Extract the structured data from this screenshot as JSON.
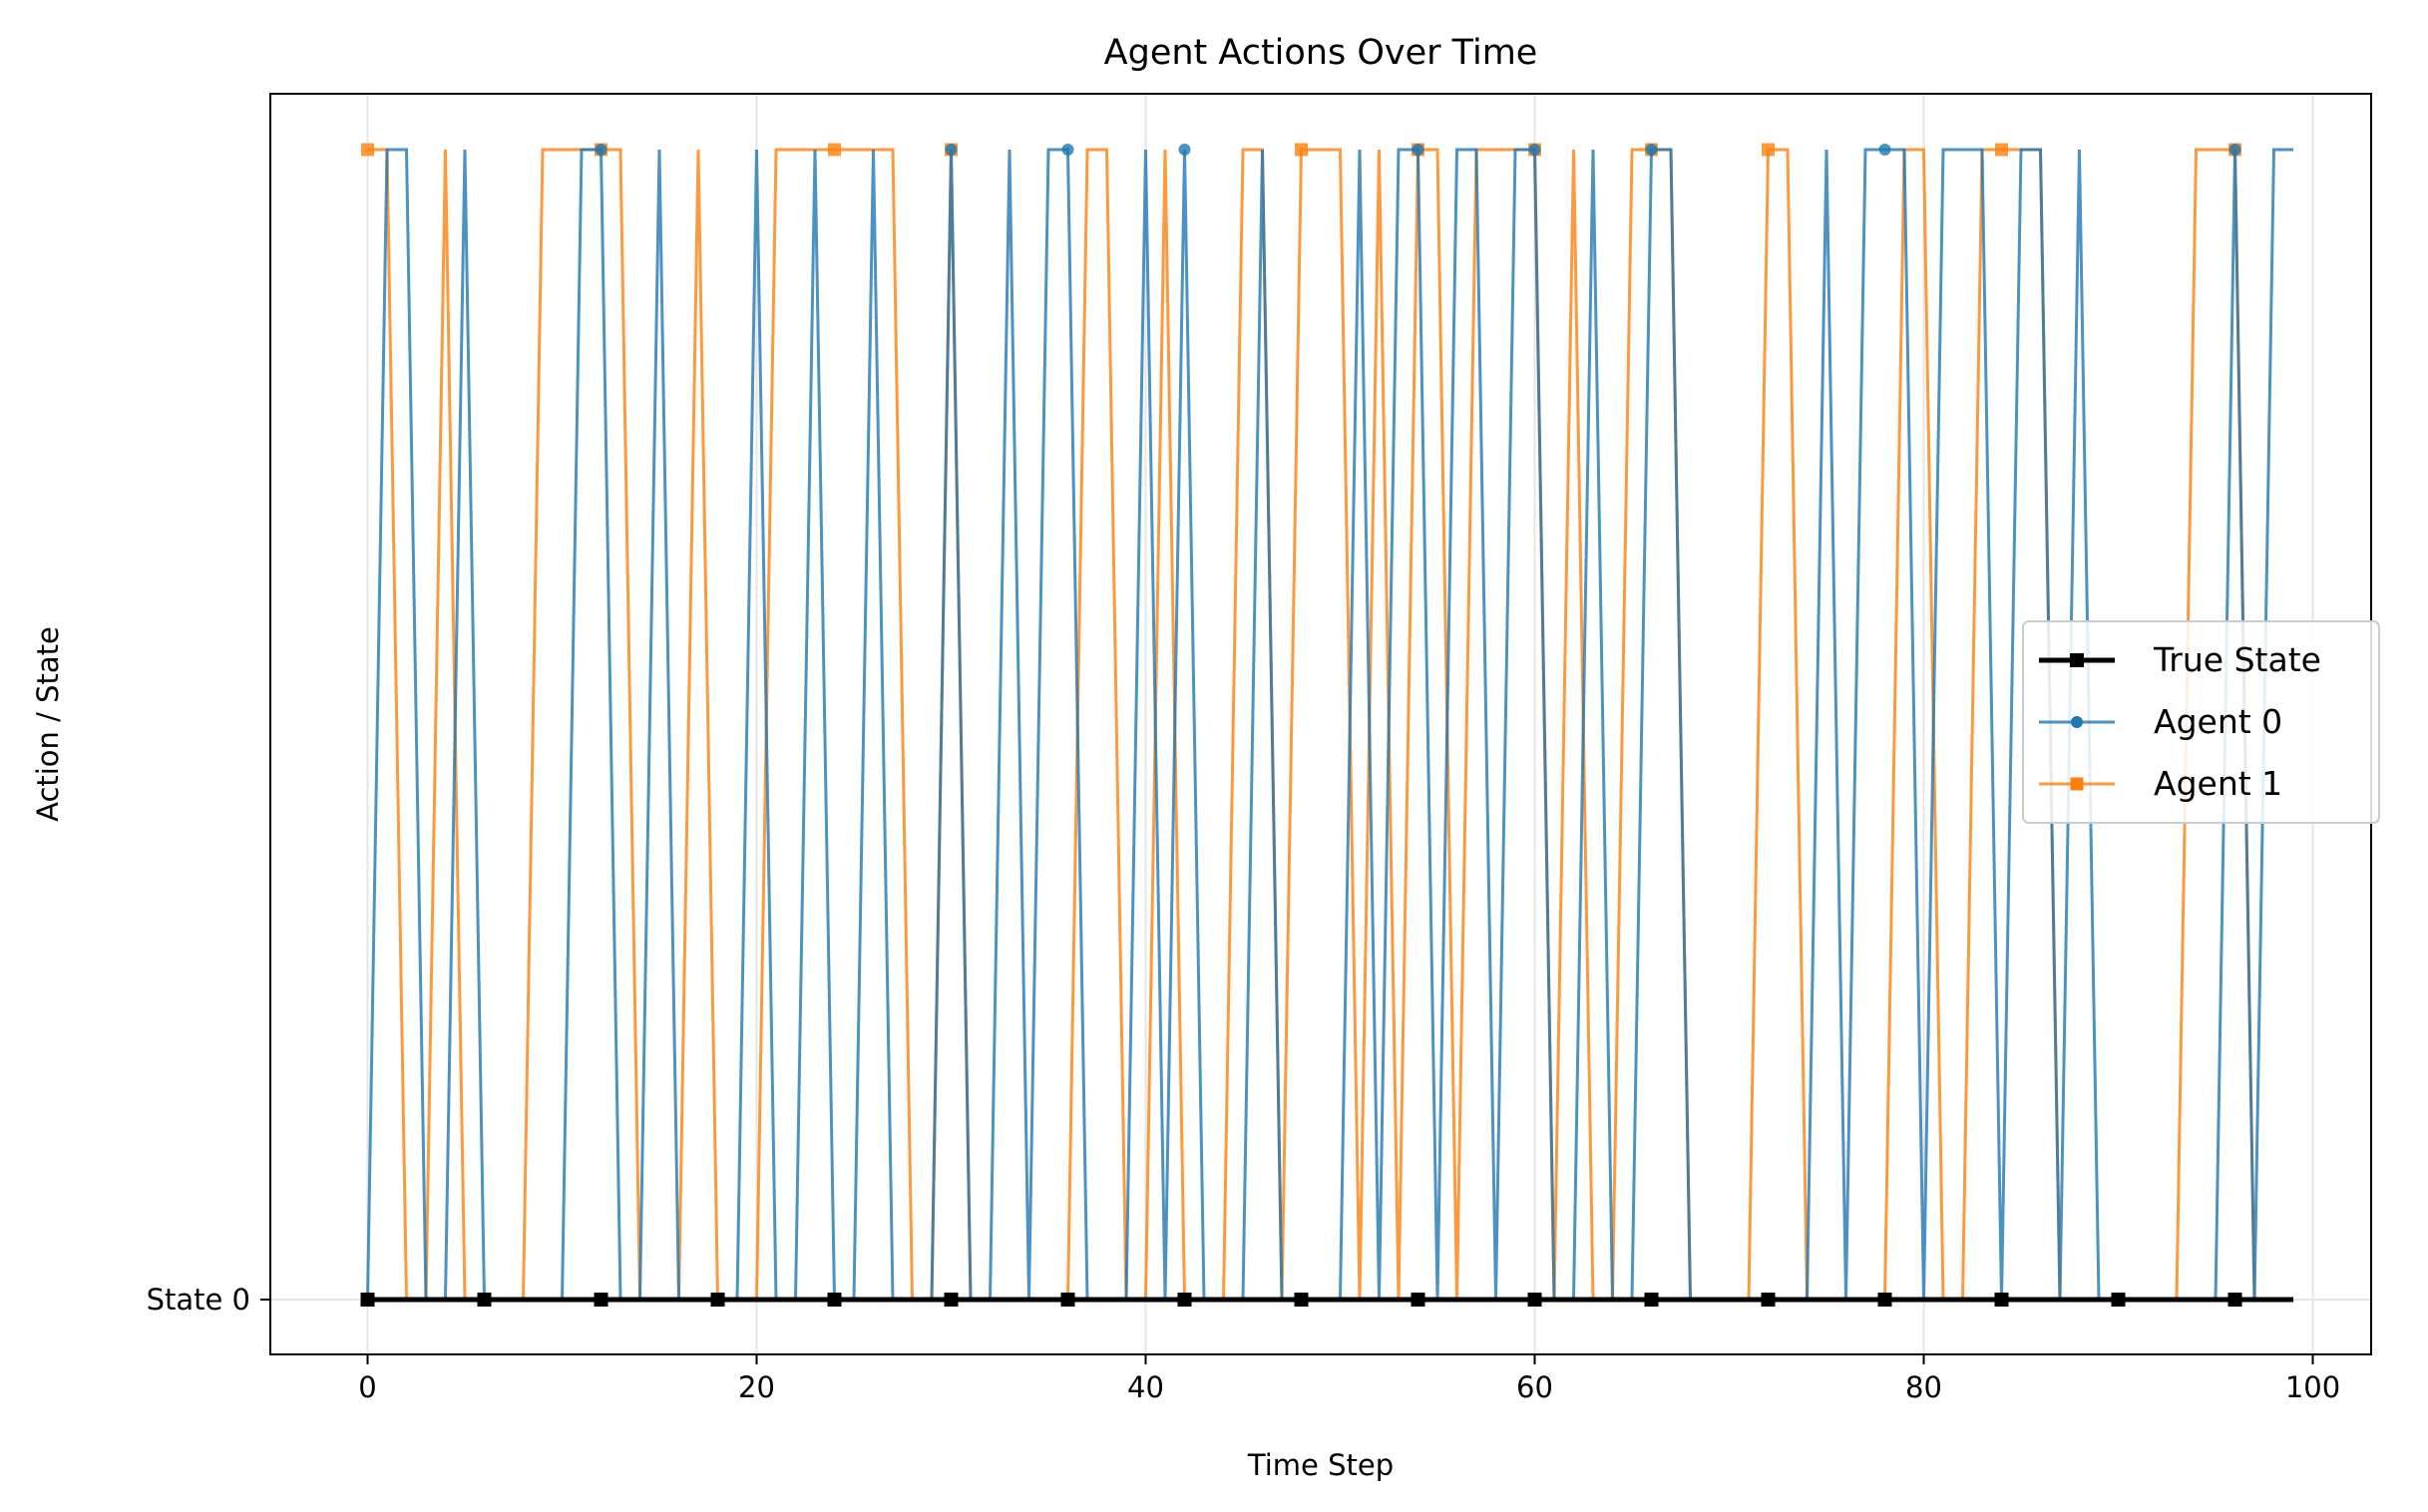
{
  "chart_data": {
    "type": "line",
    "title": "Agent Actions Over Time",
    "xlabel": "Time Step",
    "ylabel": "Action / State",
    "xlim": [
      -5,
      103
    ],
    "x_ticks": [
      0,
      20,
      40,
      60,
      80,
      100
    ],
    "y_tick_labels": [
      "State 0"
    ],
    "grid": true,
    "legend_position": "center-right",
    "x": [
      0,
      1,
      2,
      3,
      4,
      5,
      6,
      7,
      8,
      9,
      10,
      11,
      12,
      13,
      14,
      15,
      16,
      17,
      18,
      19,
      20,
      21,
      22,
      23,
      24,
      25,
      26,
      27,
      28,
      29,
      30,
      31,
      32,
      33,
      34,
      35,
      36,
      37,
      38,
      39,
      40,
      41,
      42,
      43,
      44,
      45,
      46,
      47,
      48,
      49,
      50,
      51,
      52,
      53,
      54,
      55,
      56,
      57,
      58,
      59,
      60,
      61,
      62,
      63,
      64,
      65,
      66,
      67,
      68,
      69,
      70,
      71,
      72,
      73,
      74,
      75,
      76,
      77,
      78,
      79,
      80,
      81,
      82,
      83,
      84,
      85,
      86,
      87,
      88,
      89,
      90,
      91,
      92,
      93,
      94,
      95,
      96,
      97,
      98,
      99
    ],
    "series": [
      {
        "name": "True State",
        "color": "#000000",
        "marker": "square",
        "markevery": 6,
        "values": [
          0,
          0,
          0,
          0,
          0,
          0,
          0,
          0,
          0,
          0,
          0,
          0,
          0,
          0,
          0,
          0,
          0,
          0,
          0,
          0,
          0,
          0,
          0,
          0,
          0,
          0,
          0,
          0,
          0,
          0,
          0,
          0,
          0,
          0,
          0,
          0,
          0,
          0,
          0,
          0,
          0,
          0,
          0,
          0,
          0,
          0,
          0,
          0,
          0,
          0,
          0,
          0,
          0,
          0,
          0,
          0,
          0,
          0,
          0,
          0,
          0,
          0,
          0,
          0,
          0,
          0,
          0,
          0,
          0,
          0,
          0,
          0,
          0,
          0,
          0,
          0,
          0,
          0,
          0,
          0,
          0,
          0,
          0,
          0,
          0,
          0,
          0,
          0,
          0,
          0,
          0,
          0,
          0,
          0,
          0,
          0,
          0,
          0,
          0,
          0
        ]
      },
      {
        "name": "Agent 0",
        "color": "#1f77b4",
        "marker": "circle",
        "markevery": 6,
        "values": [
          0,
          1,
          1,
          0,
          0,
          1,
          0,
          0,
          0,
          0,
          0,
          1,
          1,
          0,
          0,
          1,
          0,
          0,
          0,
          0,
          1,
          0,
          0,
          1,
          0,
          0,
          1,
          0,
          0,
          0,
          1,
          0,
          0,
          1,
          0,
          1,
          1,
          0,
          0,
          0,
          1,
          0,
          1,
          0,
          0,
          0,
          1,
          0,
          0,
          0,
          0,
          1,
          0,
          1,
          1,
          0,
          1,
          1,
          0,
          1,
          1,
          0,
          0,
          1,
          0,
          0,
          1,
          1,
          0,
          0,
          0,
          0,
          0,
          0,
          0,
          1,
          0,
          1,
          1,
          1,
          0,
          1,
          1,
          1,
          0,
          1,
          1,
          0,
          1,
          0,
          0,
          0,
          0,
          0,
          0,
          0,
          1,
          0,
          1,
          1
        ]
      },
      {
        "name": "Agent 1",
        "color": "#ff7f0e",
        "marker": "square",
        "markevery": 6,
        "values": [
          1,
          1,
          0,
          0,
          1,
          0,
          0,
          0,
          0,
          1,
          1,
          1,
          1,
          1,
          0,
          0,
          0,
          1,
          0,
          0,
          0,
          1,
          1,
          1,
          1,
          1,
          1,
          1,
          0,
          0,
          1,
          0,
          0,
          0,
          0,
          0,
          0,
          1,
          1,
          0,
          0,
          1,
          0,
          0,
          0,
          1,
          1,
          0,
          1,
          1,
          1,
          0,
          1,
          0,
          1,
          1,
          0,
          1,
          1,
          1,
          1,
          0,
          1,
          0,
          0,
          1,
          1,
          1,
          0,
          0,
          0,
          0,
          1,
          1,
          0,
          0,
          0,
          0,
          0,
          1,
          1,
          0,
          0,
          1,
          1,
          1,
          1,
          0,
          0,
          0,
          0,
          0,
          0,
          0,
          1,
          1,
          1,
          0,
          0,
          0
        ]
      }
    ]
  }
}
